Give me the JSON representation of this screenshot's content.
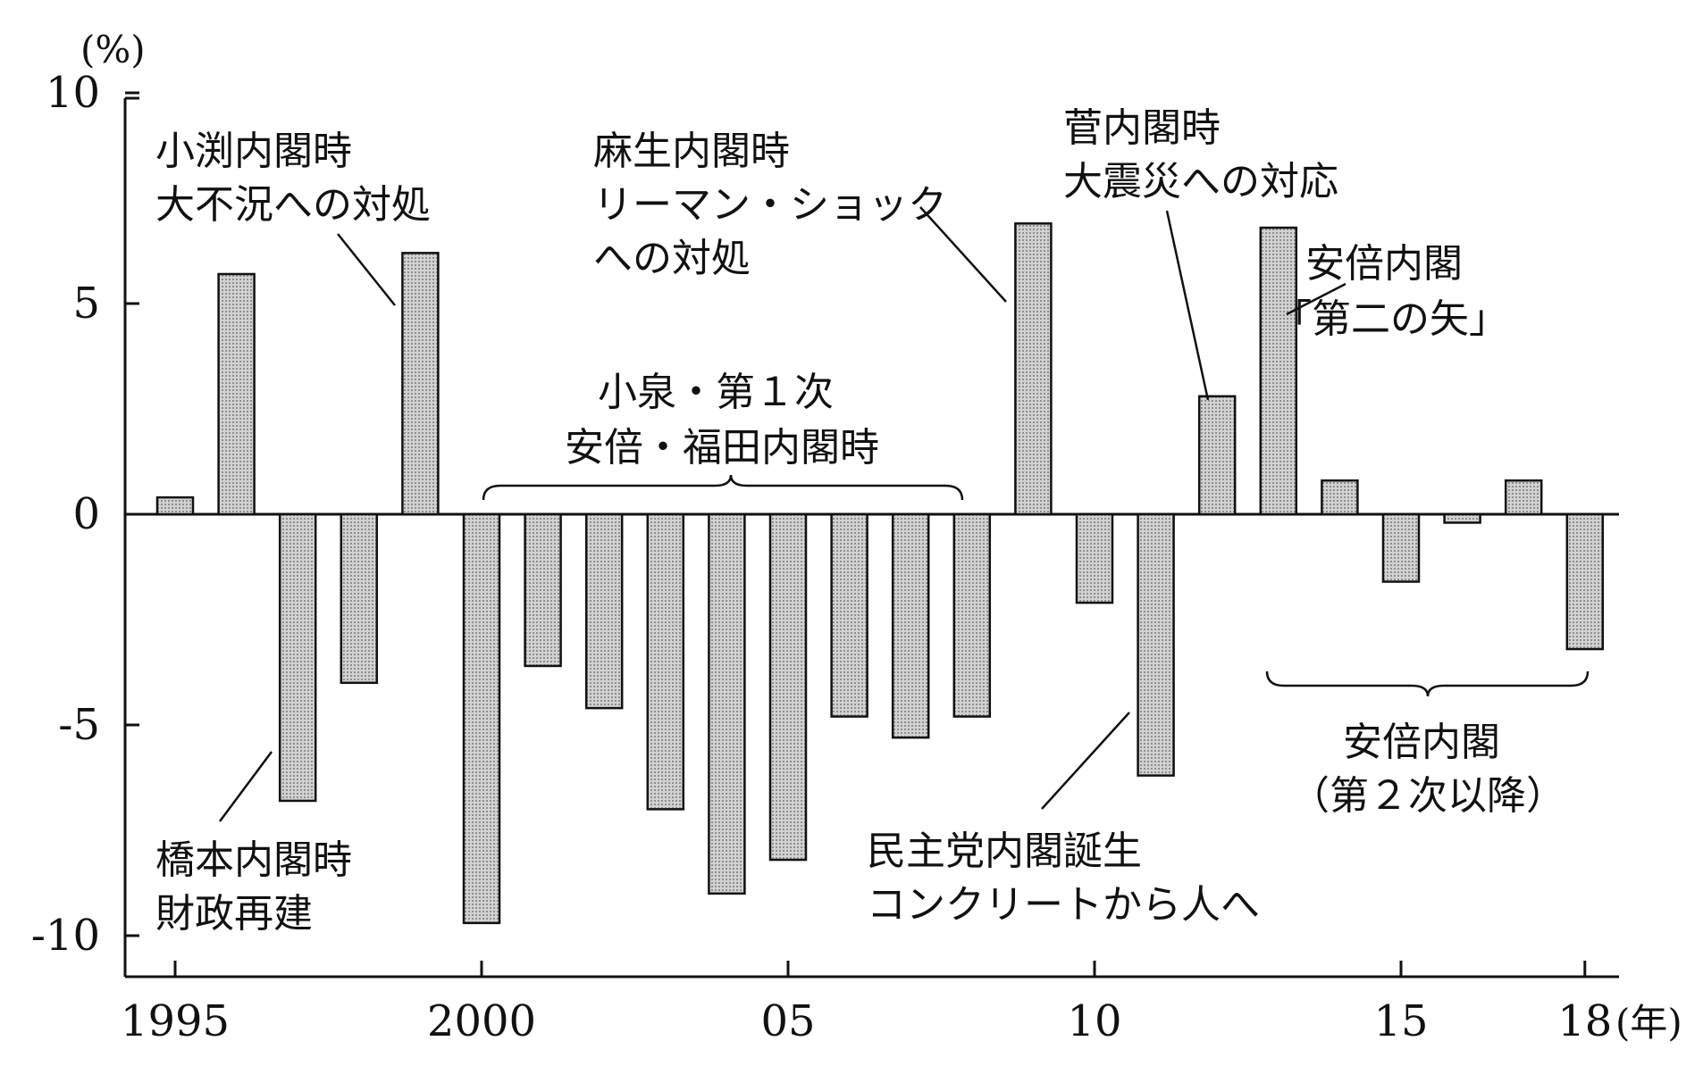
{
  "chart_data": {
    "type": "bar",
    "x": [
      1995,
      1996,
      1997,
      1998,
      1999,
      2000,
      2001,
      2002,
      2003,
      2004,
      2005,
      2006,
      2007,
      2008,
      2009,
      2010,
      2011,
      2012,
      2013,
      2014,
      2015,
      2016,
      2017,
      2018
    ],
    "values": [
      0.4,
      5.7,
      -6.8,
      -4.0,
      6.2,
      -9.7,
      -3.6,
      -4.6,
      -7.0,
      -9.0,
      -8.2,
      -4.8,
      -5.3,
      -4.8,
      6.9,
      -2.1,
      -6.2,
      2.8,
      6.8,
      0.8,
      -1.6,
      -0.2,
      0.8,
      -3.2
    ],
    "ylim": [
      -11,
      10
    ],
    "yticks": [
      10,
      5,
      0,
      -5,
      -10
    ],
    "ytick_labels": [
      "10",
      "5",
      "0",
      "-5",
      "-10"
    ],
    "xticks": [
      1995,
      2000,
      2005,
      2010,
      2015,
      2018
    ],
    "xtick_labels": [
      "1995",
      "2000",
      "05",
      "10",
      "15",
      "18"
    ],
    "y_unit": "(%)",
    "x_unit": "(年)",
    "annotations": [
      {
        "id": "obuchi",
        "lines": [
          "小渕内閣時",
          "大不況への対処"
        ]
      },
      {
        "id": "aso",
        "lines": [
          "麻生内閣時",
          "リーマン・ショック",
          "への対処"
        ]
      },
      {
        "id": "kan",
        "lines": [
          "菅内閣時",
          "大震災への対応"
        ]
      },
      {
        "id": "abe-arrow",
        "lines": [
          "安倍内閣",
          "「第二の矢」"
        ]
      },
      {
        "id": "koizumi",
        "lines": [
          "小泉・第１次",
          "安倍・福田内閣時"
        ]
      },
      {
        "id": "hashimoto",
        "lines": [
          "橋本内閣時",
          "財政再建"
        ]
      },
      {
        "id": "minshu",
        "lines": [
          "民主党内閣誕生",
          "コンクリートから人へ"
        ]
      },
      {
        "id": "abe2",
        "lines": [
          "安倍内閣",
          "（第２次以降）"
        ]
      }
    ],
    "grid": false,
    "legend": "none"
  }
}
